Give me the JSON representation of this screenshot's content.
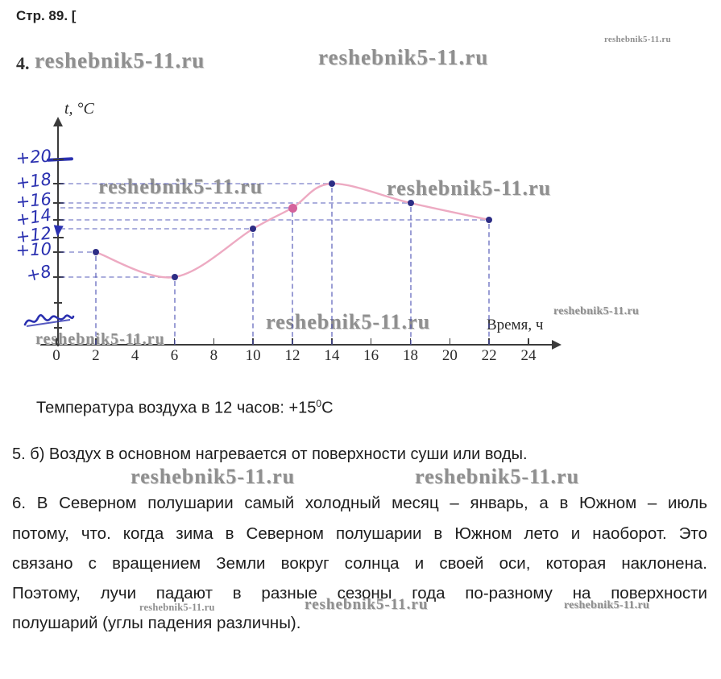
{
  "page_header": {
    "left": "Стр. 89. [",
    "task4_label": "4."
  },
  "watermark": {
    "text": "reshebnik5-11.ru"
  },
  "chart_data": {
    "type": "line",
    "xlabel": "Время, ч",
    "ylabel": "t, °C",
    "x_ticks": [
      0,
      2,
      4,
      6,
      8,
      10,
      12,
      14,
      16,
      18,
      20,
      22,
      24
    ],
    "x_range": [
      0,
      24
    ],
    "y_tick_labels": [
      "+20",
      "+18",
      "+16",
      "+14",
      "+12",
      "+10",
      "+8"
    ],
    "y_tick_values": [
      20,
      18,
      16,
      14,
      12,
      10,
      8
    ],
    "grid": "hand-drawn dashed guides from axes to each point",
    "legend": "none",
    "series": [
      {
        "name": "температура воздуха",
        "points": [
          {
            "hour": 2,
            "temp": 10
          },
          {
            "hour": 6,
            "temp": 8
          },
          {
            "hour": 10,
            "temp": 13
          },
          {
            "hour": 12,
            "temp": 15,
            "highlight": true
          },
          {
            "hour": 14,
            "temp": 18
          },
          {
            "hour": 18,
            "temp": 16
          },
          {
            "hour": 22,
            "temp": 14
          }
        ]
      }
    ]
  },
  "answers": {
    "temp_at_12": {
      "prefix": "Температура воздуха в 12 часов: +15",
      "sup": "0",
      "suffix": "С"
    },
    "item5": "5. б) Воздух в основном нагревается от поверхности суши или воды.",
    "item6_lines": [
      "6. В Северном полушарии самый холодный месяц – январь, а в Южном – июль",
      "потому, что. когда зима в Северном полушарии в Южном лето и наоборот. Это",
      "связано с вращением Земли вокруг солнца и своей оси, которая наклонена.",
      "Поэтому, лучи падают в разные сезоны года по-разному на поверхности",
      "полушарий (углы падения различны)."
    ]
  },
  "colors": {
    "handwriting_blue": "#2a30b0",
    "curve_pink": "#edaac2",
    "point_navy": "#2d2d85",
    "point_highlight_pink": "#d4639c",
    "axis_black": "#3b3b3b",
    "dash_blue": "#4a50b4",
    "watermark_gray": "#8f8f8f",
    "text_black": "#1d1d1d"
  }
}
